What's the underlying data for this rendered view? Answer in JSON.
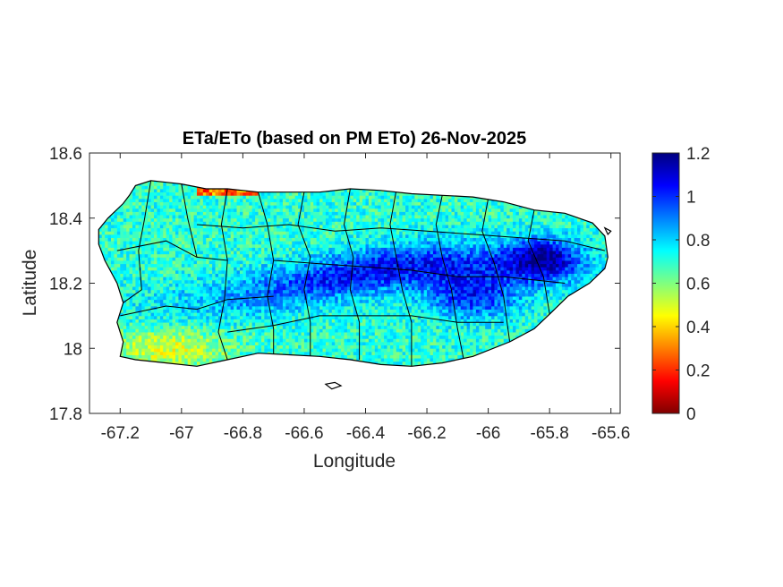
{
  "chart_data": {
    "type": "heatmap",
    "title": "ETa/ETo (based on PM ETo) 26-Nov-2025",
    "xlabel": "Longitude",
    "ylabel": "Latitude",
    "xlim": [
      -67.3,
      -65.57
    ],
    "ylim": [
      17.8,
      18.6
    ],
    "xticks": [
      -67.2,
      -67,
      -66.8,
      -66.6,
      -66.4,
      -66.2,
      -66,
      -65.8,
      -65.6
    ],
    "xtick_labels": [
      "-67.2",
      "-67",
      "-66.8",
      "-66.6",
      "-66.4",
      "-66.2",
      "-66",
      "-65.8",
      "-65.6"
    ],
    "yticks": [
      17.8,
      18,
      18.2,
      18.4,
      18.6
    ],
    "ytick_labels": [
      "17.8",
      "18",
      "18.2",
      "18.4",
      "18.6"
    ],
    "grid": false,
    "colormap": "jet",
    "colorbar": {
      "range": [
        0,
        1.2
      ],
      "ticks": [
        0,
        0.2,
        0.4,
        0.6,
        0.8,
        1,
        1.2
      ],
      "tick_labels": [
        "0",
        "0.2",
        "0.4",
        "0.6",
        "0.8",
        "1",
        "1.2"
      ],
      "placement": "right"
    },
    "field_summary": {
      "background_level": 0.7,
      "central_cordillera_level": 1.05,
      "northeast_peak_level": 1.1,
      "north_coast_edge_level": 0.15,
      "southwest_coast_level": 0.5
    },
    "coastline": [
      [
        -67.27,
        18.365
      ],
      [
        -67.24,
        18.4
      ],
      [
        -67.19,
        18.445
      ],
      [
        -67.17,
        18.47
      ],
      [
        -67.15,
        18.5
      ],
      [
        -67.1,
        18.515
      ],
      [
        -67.05,
        18.51
      ],
      [
        -67.0,
        18.505
      ],
      [
        -66.92,
        18.49
      ],
      [
        -66.85,
        18.49
      ],
      [
        -66.75,
        18.48
      ],
      [
        -66.65,
        18.48
      ],
      [
        -66.55,
        18.48
      ],
      [
        -66.45,
        18.49
      ],
      [
        -66.35,
        18.485
      ],
      [
        -66.25,
        18.475
      ],
      [
        -66.15,
        18.47
      ],
      [
        -66.05,
        18.465
      ],
      [
        -65.95,
        18.45
      ],
      [
        -65.85,
        18.425
      ],
      [
        -65.75,
        18.415
      ],
      [
        -65.66,
        18.385
      ],
      [
        -65.62,
        18.345
      ],
      [
        -65.61,
        18.28
      ],
      [
        -65.62,
        18.245
      ],
      [
        -65.67,
        18.2
      ],
      [
        -65.74,
        18.16
      ],
      [
        -65.8,
        18.105
      ],
      [
        -65.85,
        18.06
      ],
      [
        -65.93,
        18.02
      ],
      [
        -66.05,
        17.975
      ],
      [
        -66.15,
        17.955
      ],
      [
        -66.25,
        17.945
      ],
      [
        -66.35,
        17.95
      ],
      [
        -66.45,
        17.965
      ],
      [
        -66.55,
        17.975
      ],
      [
        -66.65,
        17.98
      ],
      [
        -66.75,
        17.985
      ],
      [
        -66.85,
        17.965
      ],
      [
        -66.95,
        17.945
      ],
      [
        -67.05,
        17.955
      ],
      [
        -67.15,
        17.965
      ],
      [
        -67.2,
        17.975
      ],
      [
        -67.19,
        18.02
      ],
      [
        -67.21,
        18.08
      ],
      [
        -67.19,
        18.14
      ],
      [
        -67.21,
        18.2
      ],
      [
        -67.25,
        18.27
      ],
      [
        -67.27,
        18.32
      ]
    ],
    "minor_islands": [
      [
        [
          -66.53,
          17.89
        ],
        [
          -66.5,
          17.895
        ],
        [
          -66.48,
          17.885
        ],
        [
          -66.51,
          17.875
        ]
      ],
      [
        [
          -65.62,
          18.37
        ],
        [
          -65.6,
          18.36
        ],
        [
          -65.61,
          18.35
        ]
      ]
    ],
    "municipal_boundaries": [
      [
        [
          -67.1,
          18.515
        ],
        [
          -67.12,
          18.4
        ],
        [
          -67.14,
          18.3
        ],
        [
          -67.13,
          18.18
        ],
        [
          -67.19,
          18.14
        ]
      ],
      [
        [
          -67.21,
          18.3
        ],
        [
          -67.05,
          18.33
        ],
        [
          -66.95,
          18.28
        ],
        [
          -66.85,
          18.27
        ]
      ],
      [
        [
          -67.2,
          18.1
        ],
        [
          -67.05,
          18.13
        ],
        [
          -66.95,
          18.12
        ],
        [
          -66.85,
          18.15
        ],
        [
          -66.7,
          18.16
        ]
      ],
      [
        [
          -67.0,
          18.505
        ],
        [
          -66.98,
          18.4
        ],
        [
          -66.95,
          18.28
        ]
      ],
      [
        [
          -66.85,
          18.49
        ],
        [
          -66.87,
          18.38
        ],
        [
          -66.85,
          18.27
        ],
        [
          -66.86,
          18.15
        ],
        [
          -66.88,
          18.05
        ],
        [
          -66.85,
          17.965
        ]
      ],
      [
        [
          -66.75,
          18.48
        ],
        [
          -66.72,
          18.38
        ],
        [
          -66.7,
          18.27
        ],
        [
          -66.72,
          18.16
        ],
        [
          -66.7,
          18.06
        ],
        [
          -66.7,
          17.98
        ]
      ],
      [
        [
          -66.6,
          18.48
        ],
        [
          -66.62,
          18.38
        ],
        [
          -66.58,
          18.28
        ],
        [
          -66.6,
          18.18
        ],
        [
          -66.58,
          18.08
        ],
        [
          -66.58,
          17.975
        ]
      ],
      [
        [
          -66.45,
          18.49
        ],
        [
          -66.47,
          18.38
        ],
        [
          -66.44,
          18.28
        ],
        [
          -66.45,
          18.18
        ],
        [
          -66.42,
          18.08
        ],
        [
          -66.42,
          17.965
        ]
      ],
      [
        [
          -66.3,
          18.485
        ],
        [
          -66.32,
          18.38
        ],
        [
          -66.3,
          18.28
        ],
        [
          -66.28,
          18.18
        ],
        [
          -66.25,
          18.08
        ],
        [
          -66.25,
          17.945
        ]
      ],
      [
        [
          -66.15,
          18.47
        ],
        [
          -66.17,
          18.38
        ],
        [
          -66.15,
          18.28
        ],
        [
          -66.12,
          18.18
        ],
        [
          -66.1,
          18.06
        ],
        [
          -66.08,
          17.965
        ]
      ],
      [
        [
          -66.0,
          18.46
        ],
        [
          -66.02,
          18.36
        ],
        [
          -65.98,
          18.26
        ],
        [
          -65.95,
          18.16
        ],
        [
          -65.93,
          18.02
        ]
      ],
      [
        [
          -65.85,
          18.425
        ],
        [
          -65.87,
          18.33
        ],
        [
          -65.82,
          18.22
        ],
        [
          -65.8,
          18.105
        ]
      ],
      [
        [
          -66.95,
          18.38
        ],
        [
          -66.8,
          18.37
        ],
        [
          -66.65,
          18.38
        ],
        [
          -66.5,
          18.36
        ],
        [
          -66.35,
          18.37
        ],
        [
          -66.2,
          18.36
        ],
        [
          -66.05,
          18.35
        ],
        [
          -65.9,
          18.34
        ],
        [
          -65.75,
          18.33
        ],
        [
          -65.62,
          18.3
        ]
      ],
      [
        [
          -66.7,
          18.27
        ],
        [
          -66.55,
          18.26
        ],
        [
          -66.4,
          18.25
        ],
        [
          -66.25,
          18.24
        ],
        [
          -66.1,
          18.22
        ],
        [
          -65.95,
          18.22
        ],
        [
          -65.75,
          18.2
        ]
      ],
      [
        [
          -66.85,
          18.05
        ],
        [
          -66.7,
          18.07
        ],
        [
          -66.55,
          18.1
        ],
        [
          -66.4,
          18.1
        ],
        [
          -66.25,
          18.1
        ],
        [
          -66.1,
          18.08
        ],
        [
          -65.95,
          18.08
        ]
      ]
    ]
  }
}
